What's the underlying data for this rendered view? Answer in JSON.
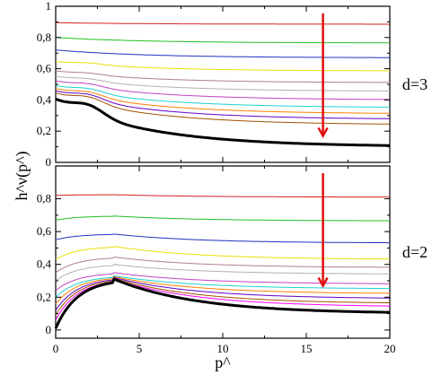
{
  "chart_data": [
    {
      "type": "line",
      "panel_label": "d=3",
      "xlim": [
        0,
        20
      ],
      "ylim": [
        0,
        1
      ],
      "x_ticks": [
        "0",
        "5",
        "10",
        "15",
        "20"
      ],
      "y_ticks": [
        "0",
        "0,2",
        "0,4",
        "0,6",
        "0,8",
        "1"
      ],
      "shape": "flat_to_decay",
      "series": [
        {
          "color": "#d62020",
          "start": 0.895,
          "end": 0.885,
          "bump": 0.0
        },
        {
          "color": "#20c020",
          "start": 0.8,
          "end": 0.765,
          "bump": 0.0
        },
        {
          "color": "#2030c0",
          "start": 0.72,
          "end": 0.67,
          "bump": 0.0
        },
        {
          "color": "#e8e000",
          "start": 0.645,
          "end": 0.585,
          "bump": 0.01
        },
        {
          "color": "#b08080",
          "start": 0.585,
          "end": 0.51,
          "bump": 0.01
        },
        {
          "color": "#b0b0b0",
          "start": 0.55,
          "end": 0.455,
          "bump": 0.015
        },
        {
          "color": "#c040c0",
          "start": 0.52,
          "end": 0.4,
          "bump": 0.02
        },
        {
          "color": "#20d0d0",
          "start": 0.49,
          "end": 0.35,
          "bump": 0.025
        },
        {
          "color": "#ff8000",
          "start": 0.47,
          "end": 0.31,
          "bump": 0.03
        },
        {
          "color": "#6000c0",
          "start": 0.455,
          "end": 0.275,
          "bump": 0.035
        },
        {
          "color": "#a05000",
          "start": 0.44,
          "end": 0.24,
          "bump": 0.04
        },
        {
          "color": "#000000",
          "start": 0.4,
          "end": 0.1,
          "bump": 0.06,
          "thick": true
        }
      ]
    },
    {
      "type": "line",
      "panel_label": "d=2",
      "xlim": [
        0,
        20
      ],
      "ylim": [
        -0.05,
        1.0
      ],
      "x_ticks": [
        "0",
        "5",
        "10",
        "15",
        "20"
      ],
      "y_ticks": [
        "0",
        "0,2",
        "0,4",
        "0,6",
        "0,8"
      ],
      "shape": "rise_then_decay",
      "series": [
        {
          "color": "#d62020",
          "start": 0.82,
          "end": 0.81,
          "peak": 0.825
        },
        {
          "color": "#20c020",
          "start": 0.67,
          "end": 0.665,
          "peak": 0.695
        },
        {
          "color": "#2030c0",
          "start": 0.55,
          "end": 0.53,
          "peak": 0.585
        },
        {
          "color": "#e8e000",
          "start": 0.43,
          "end": 0.43,
          "peak": 0.51
        },
        {
          "color": "#b08080",
          "start": 0.35,
          "end": 0.38,
          "peak": 0.445
        },
        {
          "color": "#b0b0b0",
          "start": 0.3,
          "end": 0.34,
          "peak": 0.4
        },
        {
          "color": "#c040c0",
          "start": 0.24,
          "end": 0.28,
          "peak": 0.35
        },
        {
          "color": "#20d0d0",
          "start": 0.2,
          "end": 0.25,
          "peak": 0.33
        },
        {
          "color": "#ff8000",
          "start": 0.16,
          "end": 0.22,
          "peak": 0.325
        },
        {
          "color": "#6000c0",
          "start": 0.12,
          "end": 0.19,
          "peak": 0.32
        },
        {
          "color": "#a05000",
          "start": 0.09,
          "end": 0.16,
          "peak": 0.315
        },
        {
          "color": "#ff00ff",
          "start": 0.06,
          "end": 0.14,
          "peak": 0.31
        },
        {
          "color": "#000000",
          "start": 0.01,
          "end": 0.1,
          "peak": 0.31,
          "thick": true
        }
      ]
    }
  ],
  "labels": {
    "ylabel": "h^ν(p^)",
    "xlabel": "p^"
  }
}
